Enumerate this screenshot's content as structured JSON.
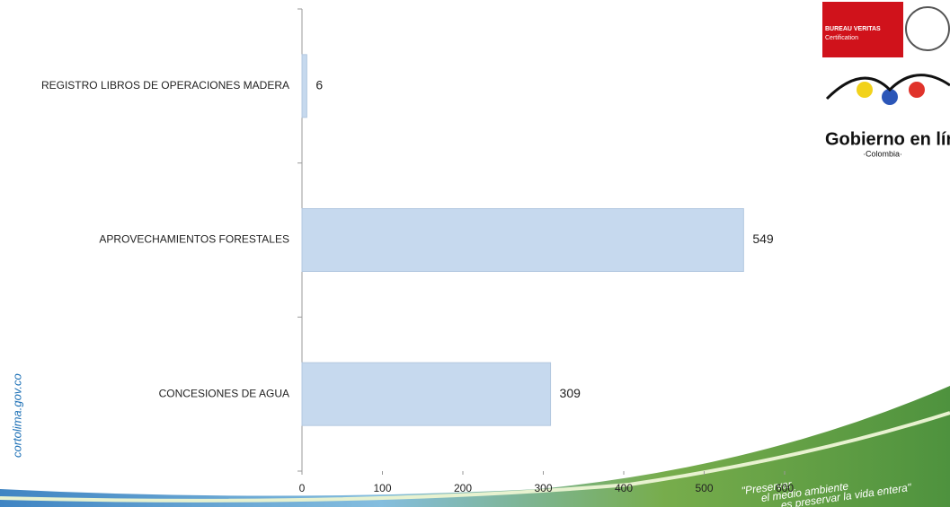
{
  "chart_data": {
    "type": "barh",
    "categories": [
      "REGISTRO LIBROS DE OPERACIONES MADERA",
      "APROVECHAMIENTOS FORESTALES",
      "CONCESIONES DE AGUA"
    ],
    "values": [
      6,
      549,
      309
    ],
    "color": "#c6d9ee",
    "xlim": [
      0,
      600
    ],
    "xticks": [
      0,
      100,
      200,
      300,
      400,
      500,
      600
    ]
  },
  "branding": {
    "site": "cortolima.gov.co",
    "certifier": "BUREAU VERITAS",
    "certification": "Certification",
    "gov_logo": "Gobierno en línea",
    "gov_country": "·Colombia·",
    "slogan": [
      "\"Preservar",
      "el medio ambiente",
      "es preservar la vida entera\""
    ]
  }
}
